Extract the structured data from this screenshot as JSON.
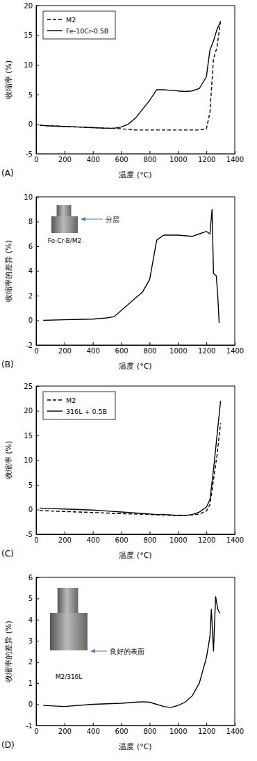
{
  "chart_data": [
    {
      "type": "line",
      "title": "(A)",
      "x_label": "温度 (°C)",
      "y_label": "收缩率 (%)",
      "x": [
        25,
        100,
        200,
        300,
        400,
        500,
        550,
        600,
        650,
        700,
        750,
        800,
        850,
        900,
        950,
        1000,
        1050,
        1100,
        1150,
        1200,
        1225,
        1250,
        1275,
        1300
      ],
      "series": [
        {
          "name": "M2",
          "color": "#000000",
          "line_style": "dashed",
          "values": [
            -0.2,
            -0.3,
            -0.4,
            -0.5,
            -0.6,
            -0.7,
            -0.7,
            -0.8,
            -0.9,
            -1.0,
            -1.0,
            -1.0,
            -1.0,
            -1.0,
            -1.0,
            -1.0,
            -1.0,
            -1.0,
            -1.0,
            -0.8,
            2.0,
            11.0,
            13.0,
            17.5
          ]
        },
        {
          "name": "Fe-10Cr-0.5B",
          "color": "#000000",
          "line_style": "solid",
          "values": [
            -0.2,
            -0.3,
            -0.4,
            -0.5,
            -0.6,
            -0.7,
            -0.7,
            -0.5,
            0.0,
            1.0,
            2.5,
            4.0,
            5.8,
            5.8,
            5.7,
            5.6,
            5.5,
            5.6,
            6.0,
            8.0,
            12.5,
            14.0,
            16.0,
            17.3
          ]
        }
      ],
      "xlim": [
        0,
        1400
      ],
      "xticks": [
        0,
        200,
        400,
        600,
        800,
        1000,
        1200,
        1400
      ],
      "ylim": [
        -5,
        20
      ],
      "yticks": [
        -5,
        0,
        5,
        10,
        15,
        20
      ],
      "legend": "upper left"
    },
    {
      "type": "line",
      "title": "(B)",
      "x_label": "温度 (°C)",
      "y_label": "收缩率的差异 (%)",
      "x": [
        50,
        200,
        400,
        500,
        550,
        600,
        650,
        700,
        750,
        800,
        850,
        900,
        1000,
        1100,
        1150,
        1200,
        1225,
        1240,
        1250,
        1260,
        1270,
        1280,
        1290
      ],
      "values": [
        0,
        0.05,
        0.1,
        0.2,
        0.3,
        0.8,
        1.3,
        1.8,
        2.3,
        3.3,
        6.5,
        6.9,
        6.9,
        6.8,
        7.0,
        7.2,
        7.0,
        9.0,
        3.8,
        3.7,
        3.6,
        2.0,
        -0.2
      ],
      "color": "#000000",
      "line_style": "solid",
      "annotations": [
        "分层",
        "Fe-Cr-B/M2"
      ],
      "xlim": [
        0,
        1400
      ],
      "xticks": [
        0,
        200,
        400,
        600,
        800,
        1000,
        1200,
        1400
      ],
      "ylim": [
        -2,
        10
      ],
      "yticks": [
        -2,
        0,
        2,
        4,
        6,
        8,
        10
      ]
    },
    {
      "type": "line",
      "title": "(C)",
      "x_label": "温度 (°C)",
      "y_label": "收缩率 (%)",
      "x": [
        25,
        100,
        200,
        300,
        400,
        500,
        550,
        600,
        650,
        700,
        750,
        800,
        850,
        900,
        950,
        1000,
        1050,
        1100,
        1150,
        1200,
        1225,
        1250,
        1275,
        1300
      ],
      "series": [
        {
          "name": "M2",
          "color": "#000000",
          "line_style": "dashed",
          "values": [
            -0.2,
            -0.3,
            -0.4,
            -0.5,
            -0.6,
            -0.7,
            -0.8,
            -0.8,
            -0.9,
            -0.9,
            -1.0,
            -1.0,
            -1.1,
            -1.1,
            -1.2,
            -1.2,
            -1.2,
            -1.1,
            -0.9,
            -0.3,
            1.0,
            6.0,
            11.0,
            17.5
          ]
        },
        {
          "name": "316L + 0.5B",
          "color": "#000000",
          "line_style": "solid",
          "values": [
            0.3,
            0.2,
            0.1,
            0.0,
            -0.1,
            -0.3,
            -0.4,
            -0.5,
            -0.6,
            -0.7,
            -0.8,
            -0.9,
            -1.0,
            -1.0,
            -1.1,
            -1.2,
            -1.2,
            -1.0,
            -0.5,
            0.5,
            2.0,
            8.0,
            15.0,
            22.0
          ]
        }
      ],
      "xlim": [
        0,
        1400
      ],
      "xticks": [
        0,
        200,
        400,
        600,
        800,
        1000,
        1200,
        1400
      ],
      "ylim": [
        -5,
        25
      ],
      "yticks": [
        -5,
        0,
        5,
        10,
        15,
        20,
        25
      ],
      "legend": "upper left"
    },
    {
      "type": "line",
      "title": "(D)",
      "x_label": "温度 (°C)",
      "y_label": "收缩率的差异 (%)",
      "x": [
        50,
        200,
        400,
        600,
        700,
        750,
        800,
        900,
        950,
        1000,
        1050,
        1100,
        1150,
        1200,
        1225,
        1235,
        1250,
        1265,
        1280,
        1295
      ],
      "values": [
        -0.05,
        -0.1,
        0,
        0.05,
        0.1,
        0.12,
        0.1,
        -0.1,
        -0.15,
        -0.05,
        0.1,
        0.4,
        1.0,
        2.2,
        3.2,
        4.5,
        2.5,
        5.1,
        4.5,
        4.3
      ],
      "color": "#000000",
      "line_style": "solid",
      "annotations": [
        "良好的表面",
        "M2/316L"
      ],
      "xlim": [
        0,
        1400
      ],
      "xticks": [
        0,
        200,
        400,
        600,
        800,
        1000,
        1200,
        1400
      ],
      "ylim": [
        -1,
        6
      ],
      "yticks": [
        -1,
        0,
        1,
        2,
        3,
        4,
        5,
        6
      ]
    }
  ]
}
